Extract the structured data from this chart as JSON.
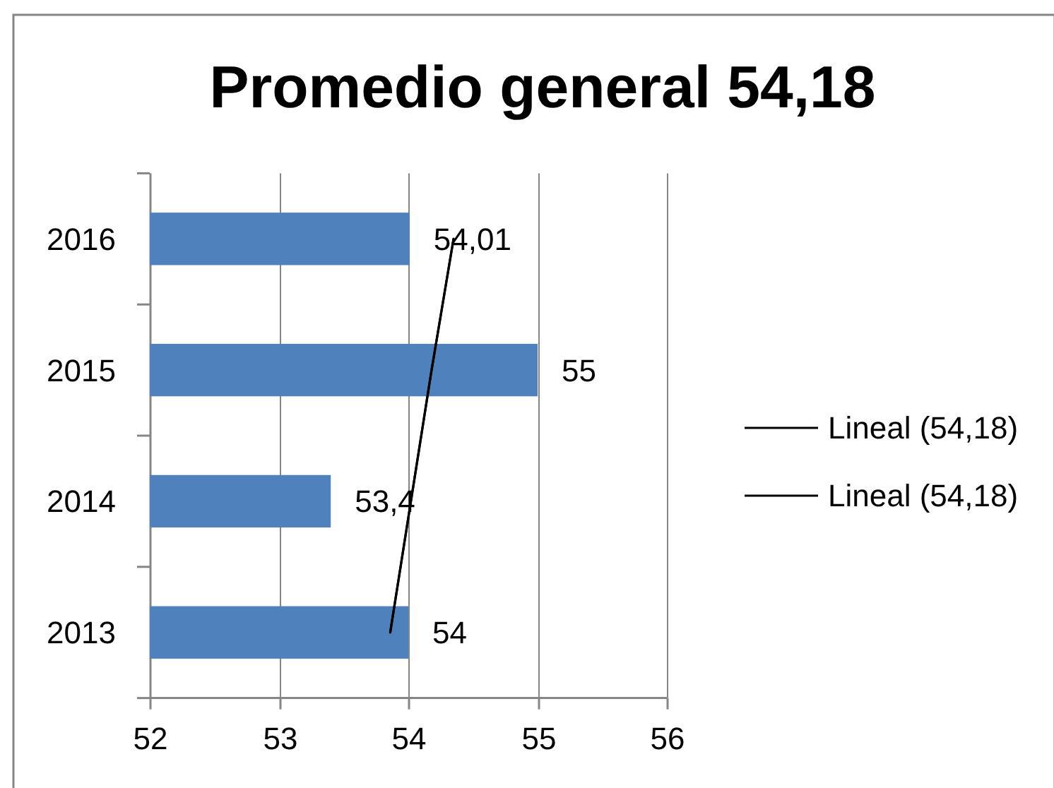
{
  "chart_data": {
    "type": "bar",
    "orientation": "horizontal",
    "title": "Promedio general 54,18",
    "categories": [
      "2016",
      "2015",
      "2014",
      "2013"
    ],
    "series": [
      {
        "type": "bar",
        "color": "#4f81bd",
        "values": [
          54.01,
          55,
          53.4,
          54
        ],
        "value_labels": [
          "54,01",
          "55",
          "53,4",
          "54"
        ]
      },
      {
        "type": "line",
        "name": "Lineal (54,18)",
        "color": "#000000",
        "values": [
          54.35,
          54.18,
          54.02,
          53.86
        ]
      },
      {
        "type": "line",
        "name": "Lineal (54,18)",
        "color": "#000000",
        "values": [
          54.35,
          54.18,
          54.02,
          53.86
        ]
      }
    ],
    "xlim": [
      52,
      56
    ],
    "xticks": [
      52,
      53,
      54,
      55,
      56
    ],
    "grid": "x",
    "legend": "right"
  }
}
